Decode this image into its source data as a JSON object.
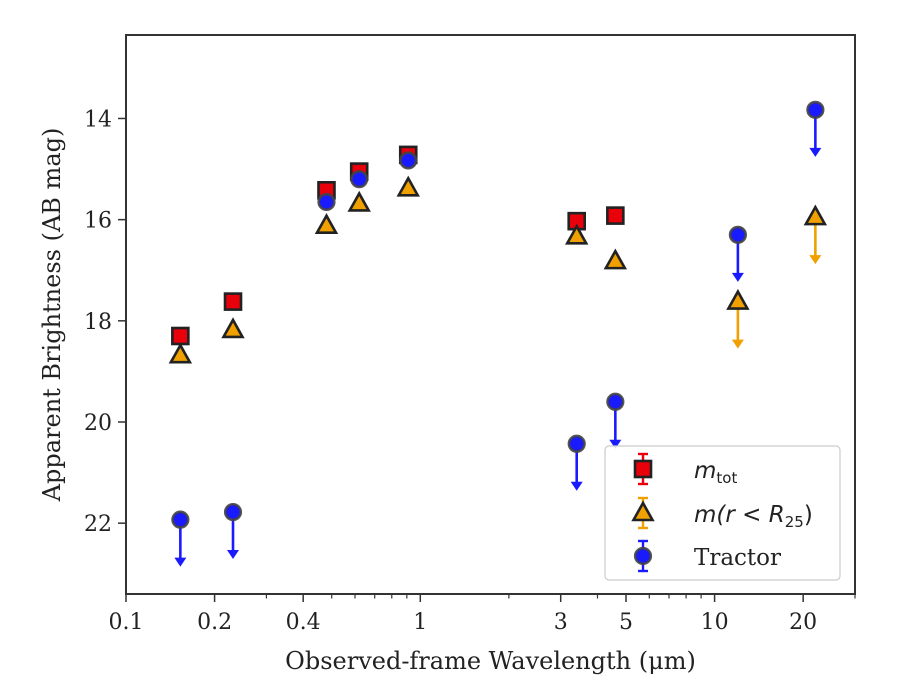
{
  "chart_data": {
    "type": "scatter",
    "title": "",
    "xlabel": "Observed-frame Wavelength (μm)",
    "ylabel": "Apparent Brightness (AB mag)",
    "x_scale": "log",
    "xlim": [
      0.1,
      30
    ],
    "ylim": [
      23.4,
      12.35
    ],
    "y_inverted": true,
    "grid": false,
    "legend_position": "lower-right",
    "x_ticks": [
      {
        "value": 0.1,
        "label": "0.1"
      },
      {
        "value": 0.2,
        "label": "0.2"
      },
      {
        "value": 0.4,
        "label": "0.4"
      },
      {
        "value": 1,
        "label": "1"
      },
      {
        "value": 3,
        "label": "3"
      },
      {
        "value": 5,
        "label": "5"
      },
      {
        "value": 10,
        "label": "10"
      },
      {
        "value": 20,
        "label": "20"
      }
    ],
    "x_minor_ticks": [
      0.3,
      0.5,
      0.6,
      0.7,
      0.8,
      0.9,
      2,
      4,
      6,
      7,
      8,
      9,
      30
    ],
    "y_ticks": [
      {
        "value": 14,
        "label": "14"
      },
      {
        "value": 16,
        "label": "16"
      },
      {
        "value": 18,
        "label": "18"
      },
      {
        "value": 20,
        "label": "20"
      },
      {
        "value": 22,
        "label": "22"
      }
    ],
    "series": [
      {
        "name": "m_tot",
        "legend_main": "m",
        "legend_sub": "tot",
        "marker": "square",
        "color": "#e8000b",
        "points": [
          {
            "x": 0.153,
            "y": 18.3
          },
          {
            "x": 0.231,
            "y": 17.62
          },
          {
            "x": 0.48,
            "y": 15.42
          },
          {
            "x": 0.62,
            "y": 15.05
          },
          {
            "x": 0.91,
            "y": 14.72
          },
          {
            "x": 3.4,
            "y": 16.03
          },
          {
            "x": 4.6,
            "y": 15.92
          }
        ]
      },
      {
        "name": "m(r < R25)",
        "legend_main": "m(r < R",
        "legend_sub": "25",
        "legend_close": ")",
        "marker": "triangle",
        "color": "#f0a000",
        "points": [
          {
            "x": 0.153,
            "y": 18.68
          },
          {
            "x": 0.231,
            "y": 18.18
          },
          {
            "x": 0.48,
            "y": 16.12
          },
          {
            "x": 0.62,
            "y": 15.68
          },
          {
            "x": 0.91,
            "y": 15.38
          },
          {
            "x": 3.4,
            "y": 16.33
          },
          {
            "x": 4.6,
            "y": 16.82
          },
          {
            "x": 12.0,
            "y": 17.62,
            "upper_limit": true
          },
          {
            "x": 22.0,
            "y": 15.95,
            "upper_limit": true
          }
        ]
      },
      {
        "name": "Tractor",
        "legend_main": "Tractor",
        "marker": "circle",
        "color": "#1a1aff",
        "points": [
          {
            "x": 0.153,
            "y": 21.93,
            "upper_limit": true
          },
          {
            "x": 0.231,
            "y": 21.78,
            "upper_limit": true
          },
          {
            "x": 0.48,
            "y": 15.65
          },
          {
            "x": 0.62,
            "y": 15.2
          },
          {
            "x": 0.91,
            "y": 14.83
          },
          {
            "x": 3.4,
            "y": 20.43,
            "upper_limit": true
          },
          {
            "x": 4.6,
            "y": 19.6,
            "upper_limit": true
          },
          {
            "x": 12.0,
            "y": 16.3,
            "upper_limit": true
          },
          {
            "x": 22.0,
            "y": 13.83,
            "upper_limit": true
          }
        ]
      }
    ]
  }
}
